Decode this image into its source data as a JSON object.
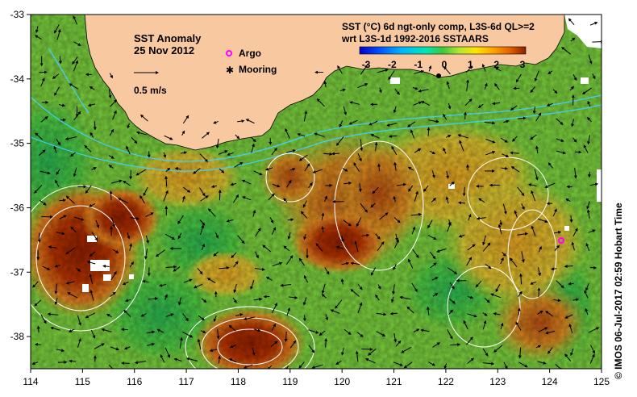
{
  "title": "SST Anomaly",
  "date": "25 Nov 2012",
  "scale_label": "0.5 m/s",
  "legend": {
    "argo": "Argo",
    "mooring": "Mooring"
  },
  "product": {
    "line1": "SST (°C) 6d ngt-only comp, L3S-6d QL>=2",
    "line2": "wrt L3S-1d 1992-2016 SSTAARS"
  },
  "colorbar": {
    "ticks": [
      "-3",
      "-2",
      "-1",
      "0",
      "1",
      "2",
      "3"
    ],
    "range": [
      -3,
      3
    ],
    "colors": [
      "#0000c8",
      "#0050ff",
      "#00b4ff",
      "#00e6b4",
      "#3cc83c",
      "#b4e632",
      "#ffe600",
      "#ffa500",
      "#e66400",
      "#b43200",
      "#8c1e00"
    ]
  },
  "x_ticks": [
    "114",
    "115",
    "116",
    "117",
    "118",
    "119",
    "120",
    "121",
    "122",
    "123",
    "124",
    "125"
  ],
  "y_ticks": [
    "-33",
    "-34",
    "-35",
    "-36",
    "-37",
    "-38"
  ],
  "x_range": [
    114,
    125
  ],
  "y_range": [
    -33,
    -38.5
  ],
  "credit": "© IMOS 06-Jul-2017 02:59 Hobart Time",
  "colors": {
    "land": "#f8c8a0",
    "argo": "#ff00ff",
    "mooring": "#000000",
    "contour": "#ffffff",
    "current": "#40d0ff"
  }
}
